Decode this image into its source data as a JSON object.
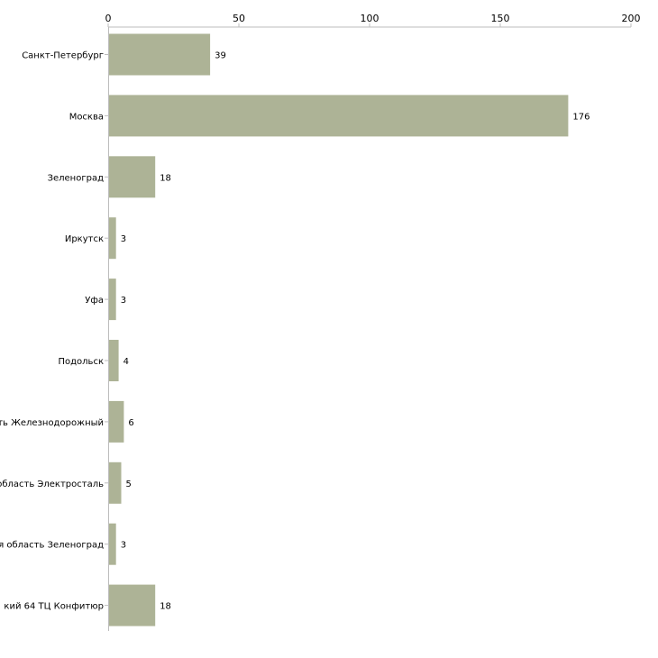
{
  "chart_data": {
    "type": "bar",
    "orientation": "horizontal",
    "categories": [
      "Санкт-Петербург",
      "Москва",
      "Зеленоград",
      "Иркутск",
      "Уфа",
      "Подольск",
      "ть Железнодорожный",
      "область Электросталь",
      "я область Зеленоград",
      "кий 64 ТЦ Конфитюр"
    ],
    "values": [
      39,
      176,
      18,
      3,
      3,
      4,
      6,
      5,
      3,
      18
    ],
    "xlim": [
      0,
      200
    ],
    "xticks": [
      0,
      50,
      100,
      150,
      200
    ],
    "xaxis_position": "top",
    "title": "",
    "xlabel": "",
    "ylabel": "",
    "grid": false,
    "bar_color": "#adb396"
  }
}
